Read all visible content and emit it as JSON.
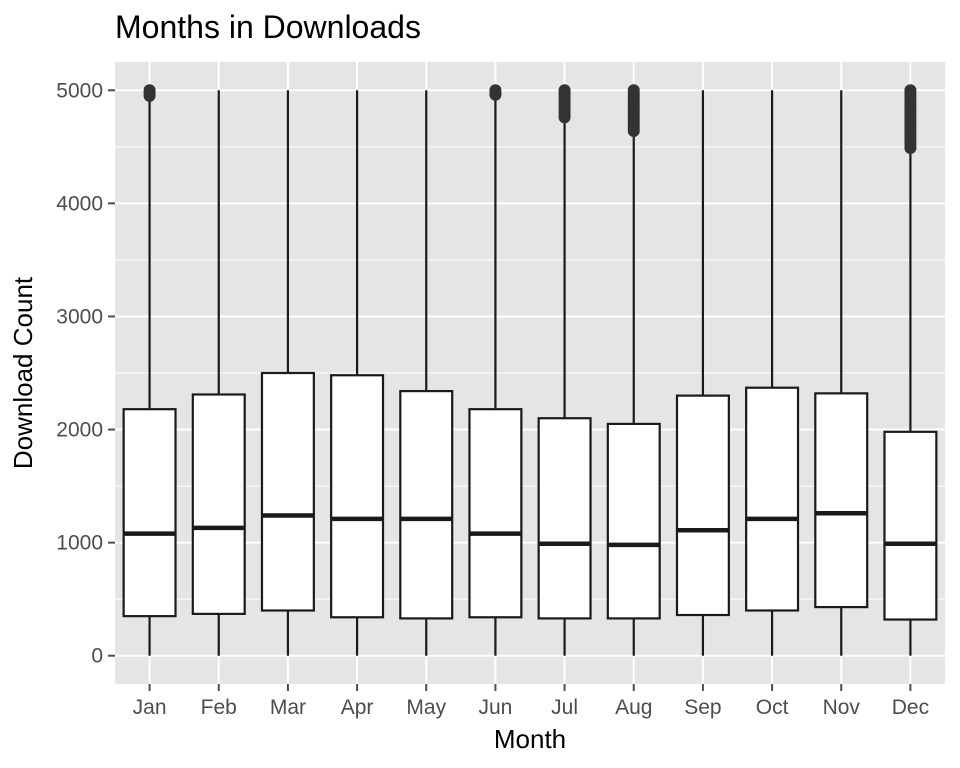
{
  "chart_data": {
    "type": "box",
    "title": "Months in Downloads",
    "xlabel": "Month",
    "ylabel": "Download Count",
    "ylim": [
      -250,
      5250
    ],
    "y_ticks": [
      0,
      1000,
      2000,
      3000,
      4000,
      5000
    ],
    "grid": true,
    "legend": "none",
    "categories": [
      "Jan",
      "Feb",
      "Mar",
      "Apr",
      "May",
      "Jun",
      "Jul",
      "Aug",
      "Sep",
      "Oct",
      "Nov",
      "Dec"
    ],
    "boxes": [
      {
        "whisker_low": 0,
        "q1": 350,
        "median": 1080,
        "q3": 2180,
        "whisker_high": 4940,
        "outliers_from": 4950,
        "outliers_to": 5000
      },
      {
        "whisker_low": 0,
        "q1": 370,
        "median": 1130,
        "q3": 2310,
        "whisker_high": 5000,
        "outliers_from": null,
        "outliers_to": null
      },
      {
        "whisker_low": 0,
        "q1": 400,
        "median": 1240,
        "q3": 2500,
        "whisker_high": 5000,
        "outliers_from": null,
        "outliers_to": null
      },
      {
        "whisker_low": 0,
        "q1": 340,
        "median": 1210,
        "q3": 2480,
        "whisker_high": 5000,
        "outliers_from": null,
        "outliers_to": null
      },
      {
        "whisker_low": 0,
        "q1": 330,
        "median": 1210,
        "q3": 2340,
        "whisker_high": 5000,
        "outliers_from": null,
        "outliers_to": null
      },
      {
        "whisker_low": 0,
        "q1": 340,
        "median": 1080,
        "q3": 2180,
        "whisker_high": 4950,
        "outliers_from": 4960,
        "outliers_to": 5000
      },
      {
        "whisker_low": 0,
        "q1": 330,
        "median": 990,
        "q3": 2100,
        "whisker_high": 4740,
        "outliers_from": 4760,
        "outliers_to": 5000
      },
      {
        "whisker_low": 0,
        "q1": 330,
        "median": 980,
        "q3": 2050,
        "whisker_high": 4620,
        "outliers_from": 4640,
        "outliers_to": 5000
      },
      {
        "whisker_low": 0,
        "q1": 360,
        "median": 1110,
        "q3": 2300,
        "whisker_high": 5000,
        "outliers_from": null,
        "outliers_to": null
      },
      {
        "whisker_low": 0,
        "q1": 400,
        "median": 1210,
        "q3": 2370,
        "whisker_high": 5000,
        "outliers_from": null,
        "outliers_to": null
      },
      {
        "whisker_low": 0,
        "q1": 430,
        "median": 1260,
        "q3": 2320,
        "whisker_high": 5000,
        "outliers_from": null,
        "outliers_to": null
      },
      {
        "whisker_low": 0,
        "q1": 320,
        "median": 990,
        "q3": 1980,
        "whisker_high": 4470,
        "outliers_from": 4490,
        "outliers_to": 5000
      }
    ],
    "colors": {
      "panel": "#e5e5e5",
      "grid": "#ffffff",
      "box_fill": "#ffffff",
      "box_line": "#1a1a1a",
      "outlier": "#333333",
      "tick": "#4d4d4d"
    }
  }
}
